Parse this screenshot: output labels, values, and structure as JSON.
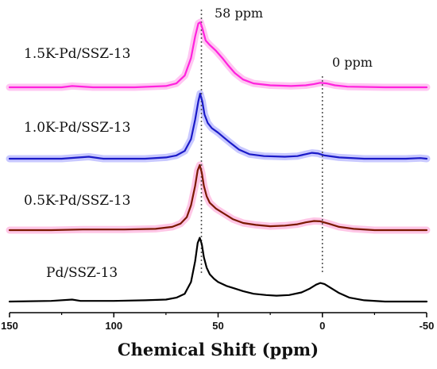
{
  "chart_data": {
    "type": "line",
    "xlabel": "Chemical Shift (ppm)",
    "ylabel": "",
    "xlim": [
      150,
      -50
    ],
    "x_reversed": true,
    "x_ticks": [
      150,
      100,
      50,
      0,
      -50
    ],
    "grid": false,
    "legend": "labels beside each trace",
    "annotations": [
      {
        "text": "58 ppm",
        "x": 58
      },
      {
        "text": "0 ppm",
        "x": 0
      }
    ],
    "series": [
      {
        "name": "1.5K-Pd/SSZ-13",
        "color": "#ff22dd",
        "band_color": "#ffc6f2",
        "offset": 3.0,
        "points": [
          [
            150,
            0.0
          ],
          [
            125,
            0.0
          ],
          [
            120,
            0.02
          ],
          [
            110,
            0.0
          ],
          [
            90,
            0.0
          ],
          [
            75,
            0.02
          ],
          [
            70,
            0.06
          ],
          [
            66,
            0.18
          ],
          [
            63,
            0.45
          ],
          [
            61,
            0.78
          ],
          [
            59.5,
            0.98
          ],
          [
            58.5,
            1.0
          ],
          [
            57.5,
            0.9
          ],
          [
            56,
            0.72
          ],
          [
            54,
            0.65
          ],
          [
            51,
            0.56
          ],
          [
            48,
            0.45
          ],
          [
            45,
            0.33
          ],
          [
            42,
            0.22
          ],
          [
            38,
            0.12
          ],
          [
            33,
            0.06
          ],
          [
            25,
            0.03
          ],
          [
            15,
            0.02
          ],
          [
            8,
            0.03
          ],
          [
            4,
            0.05
          ],
          [
            1,
            0.07
          ],
          [
            -2,
            0.06
          ],
          [
            -6,
            0.03
          ],
          [
            -12,
            0.01
          ],
          [
            -30,
            0.0
          ],
          [
            -50,
            0.0
          ]
        ]
      },
      {
        "name": "1.0K-Pd/SSZ-13",
        "color": "#1a1ac8",
        "band_color": "#c8c8ff",
        "offset": 2.0,
        "points": [
          [
            150,
            0.0
          ],
          [
            125,
            0.0
          ],
          [
            112,
            0.03
          ],
          [
            105,
            0.0
          ],
          [
            85,
            0.0
          ],
          [
            75,
            0.02
          ],
          [
            70,
            0.05
          ],
          [
            66,
            0.12
          ],
          [
            63,
            0.3
          ],
          [
            61,
            0.6
          ],
          [
            59.5,
            0.88
          ],
          [
            58.6,
            1.0
          ],
          [
            57.6,
            0.88
          ],
          [
            56.5,
            0.68
          ],
          [
            55,
            0.55
          ],
          [
            53,
            0.47
          ],
          [
            50,
            0.4
          ],
          [
            47,
            0.32
          ],
          [
            44,
            0.24
          ],
          [
            40,
            0.14
          ],
          [
            35,
            0.07
          ],
          [
            28,
            0.04
          ],
          [
            18,
            0.03
          ],
          [
            12,
            0.04
          ],
          [
            8,
            0.07
          ],
          [
            5,
            0.09
          ],
          [
            2,
            0.08
          ],
          [
            -1,
            0.05
          ],
          [
            -8,
            0.02
          ],
          [
            -20,
            0.0
          ],
          [
            -40,
            0.0
          ],
          [
            -47,
            0.01
          ],
          [
            -50,
            0.0
          ]
        ]
      },
      {
        "name": "0.5K-Pd/SSZ-13",
        "color": "#7a1800",
        "band_color": "#ffc6e6",
        "offset": 1.0,
        "points": [
          [
            150,
            0.0
          ],
          [
            130,
            0.0
          ],
          [
            115,
            0.01
          ],
          [
            95,
            0.01
          ],
          [
            80,
            0.02
          ],
          [
            72,
            0.05
          ],
          [
            68,
            0.1
          ],
          [
            65,
            0.2
          ],
          [
            63,
            0.38
          ],
          [
            61,
            0.68
          ],
          [
            59.8,
            0.92
          ],
          [
            58.8,
            1.0
          ],
          [
            57.8,
            0.88
          ],
          [
            56.8,
            0.68
          ],
          [
            55.5,
            0.52
          ],
          [
            54,
            0.42
          ],
          [
            51,
            0.33
          ],
          [
            47,
            0.25
          ],
          [
            43,
            0.17
          ],
          [
            38,
            0.11
          ],
          [
            32,
            0.08
          ],
          [
            25,
            0.06
          ],
          [
            18,
            0.07
          ],
          [
            12,
            0.09
          ],
          [
            8,
            0.12
          ],
          [
            4,
            0.14
          ],
          [
            1,
            0.135
          ],
          [
            -3,
            0.1
          ],
          [
            -8,
            0.05
          ],
          [
            -15,
            0.02
          ],
          [
            -25,
            0.0
          ],
          [
            -50,
            0.0
          ]
        ]
      },
      {
        "name": "Pd/SSZ-13",
        "color": "#000000",
        "band_color": "#ffffff",
        "offset": 0.0,
        "points": [
          [
            150,
            0.0
          ],
          [
            130,
            0.01
          ],
          [
            120,
            0.03
          ],
          [
            116,
            0.01
          ],
          [
            100,
            0.01
          ],
          [
            85,
            0.02
          ],
          [
            75,
            0.03
          ],
          [
            70,
            0.06
          ],
          [
            66,
            0.12
          ],
          [
            63,
            0.3
          ],
          [
            61,
            0.62
          ],
          [
            59.8,
            0.9
          ],
          [
            58.8,
            0.98
          ],
          [
            57.8,
            0.88
          ],
          [
            56.8,
            0.68
          ],
          [
            55.5,
            0.52
          ],
          [
            54,
            0.42
          ],
          [
            52,
            0.35
          ],
          [
            50,
            0.3
          ],
          [
            46,
            0.24
          ],
          [
            42,
            0.2
          ],
          [
            38,
            0.16
          ],
          [
            33,
            0.12
          ],
          [
            27,
            0.1
          ],
          [
            22,
            0.09
          ],
          [
            16,
            0.1
          ],
          [
            10,
            0.14
          ],
          [
            6,
            0.2
          ],
          [
            3,
            0.26
          ],
          [
            1,
            0.285
          ],
          [
            -1,
            0.27
          ],
          [
            -4,
            0.21
          ],
          [
            -8,
            0.13
          ],
          [
            -13,
            0.06
          ],
          [
            -20,
            0.02
          ],
          [
            -30,
            0.0
          ],
          [
            -50,
            0.0
          ]
        ]
      }
    ]
  }
}
